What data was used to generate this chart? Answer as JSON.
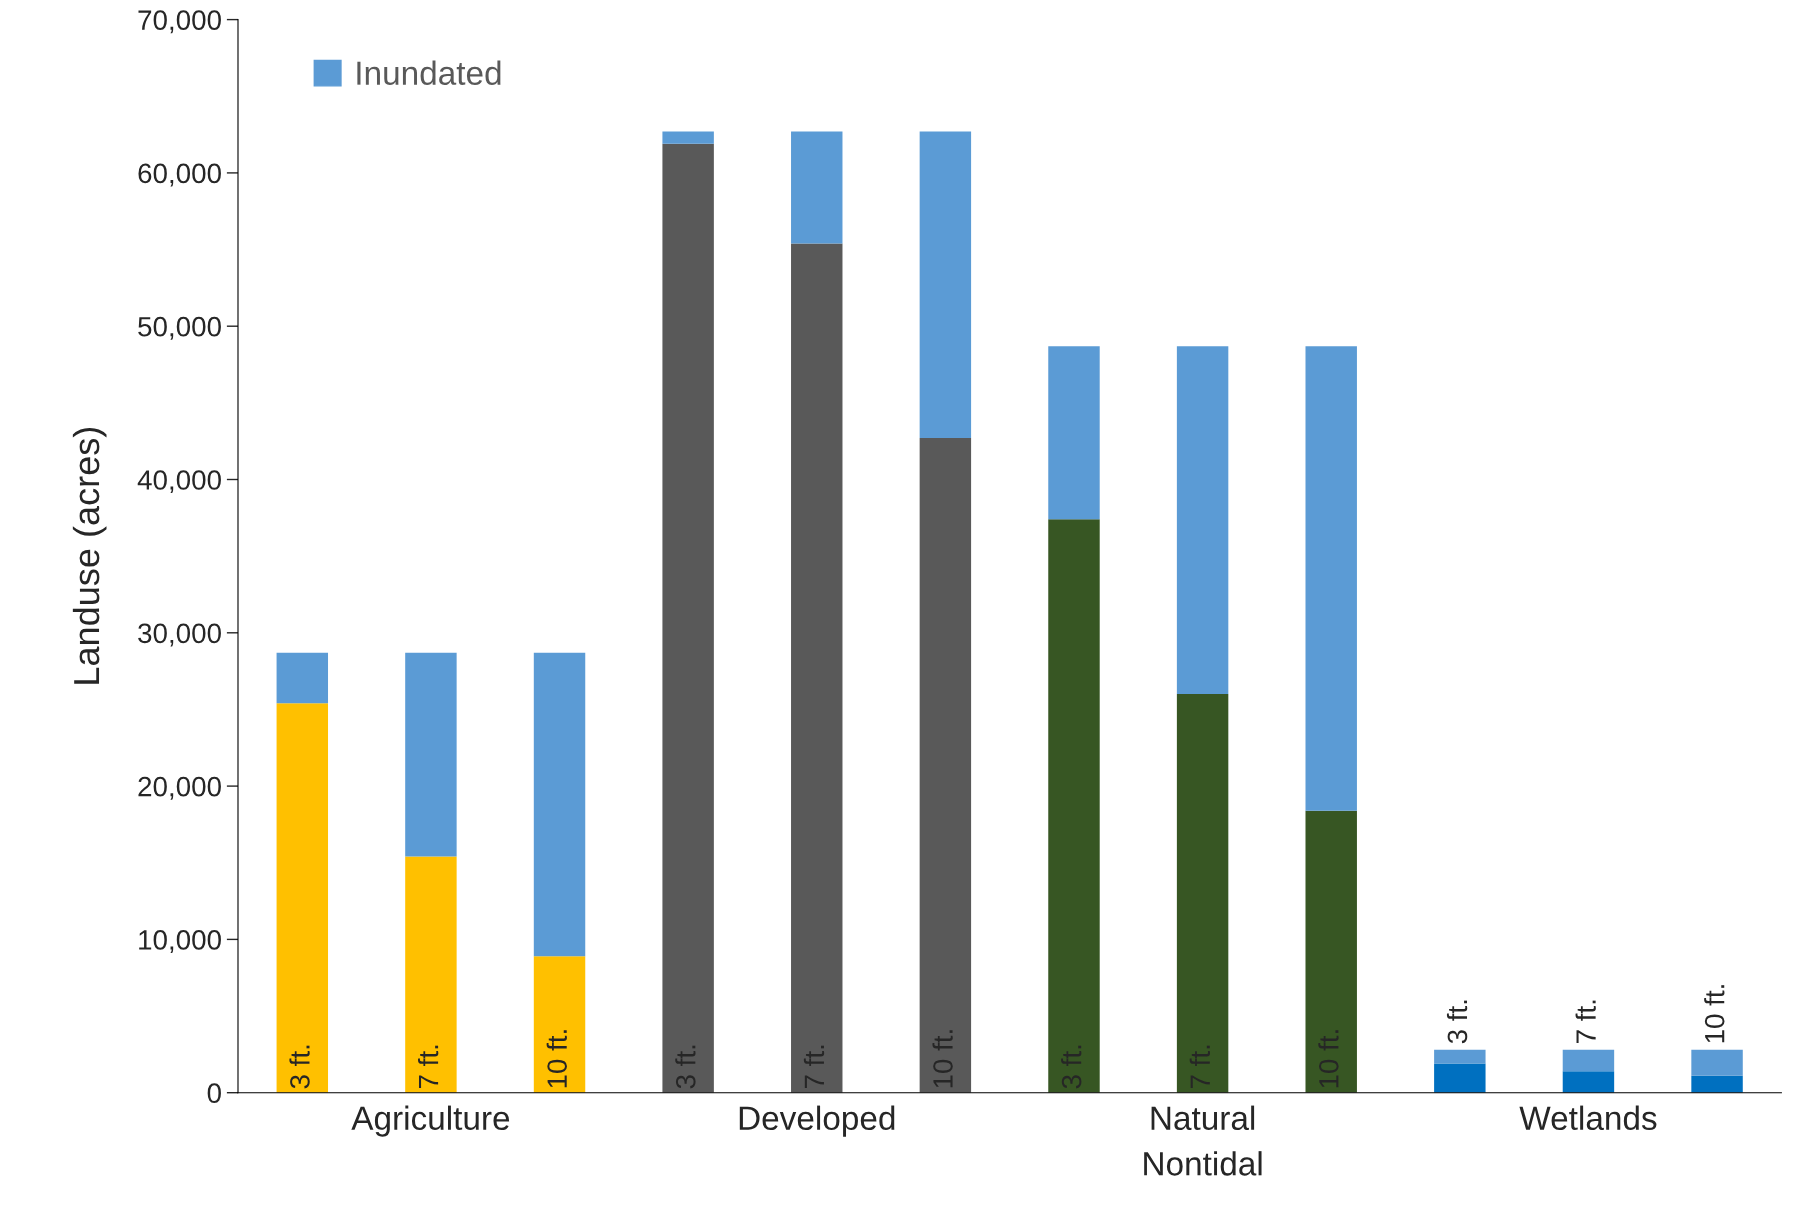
{
  "chart_data": {
    "type": "bar",
    "stacked": true,
    "ylabel": "Landuse (acres)",
    "categories": [
      null,
      null,
      null,
      null,
      null,
      null,
      null,
      null,
      null,
      null,
      null,
      null
    ],
    "series": [
      {
        "colors": [
          "#ffc000",
          "#ffc000",
          "#ffc000",
          "#595959",
          "#595959",
          "#595959",
          "#375623",
          "#375623",
          "#375623",
          "#0070c0",
          "#0070c0",
          "#0070c0"
        ],
        "values": [
          25400,
          15400,
          8900,
          61900,
          55400,
          42700,
          37400,
          26000,
          18400,
          1900,
          1400,
          1100
        ]
      },
      {
        "name": "Inundated",
        "color": "#5b9bd5",
        "values": [
          3300,
          13300,
          19800,
          800,
          7300,
          20000,
          11300,
          22700,
          30300,
          900,
          1400,
          1700
        ]
      }
    ],
    "annotations": [
      "3 ft.",
      "7 ft.",
      "10 ft.",
      "3 ft.",
      "7 ft.",
      "10 ft.",
      "3 ft.",
      "7 ft.",
      "10 ft.",
      "3 ft.",
      "7 ft.",
      "10 ft.",
      "Agriculture",
      "Developed",
      "Natural\nNontidal",
      "Wetlands"
    ],
    "ylim": [
      0,
      70000
    ],
    "yticks": [
      {
        "value": 0,
        "label": "0"
      },
      {
        "value": 10000,
        "label": "10,000"
      },
      {
        "value": 20000,
        "label": "20,000"
      },
      {
        "value": 30000,
        "label": "30,000"
      },
      {
        "value": 40000,
        "label": "40,000"
      },
      {
        "value": 50000,
        "label": "50,000"
      },
      {
        "value": 60000,
        "label": "60,000"
      },
      {
        "value": 70000,
        "label": "70,000"
      }
    ],
    "grid": false,
    "legend": "top left"
  }
}
